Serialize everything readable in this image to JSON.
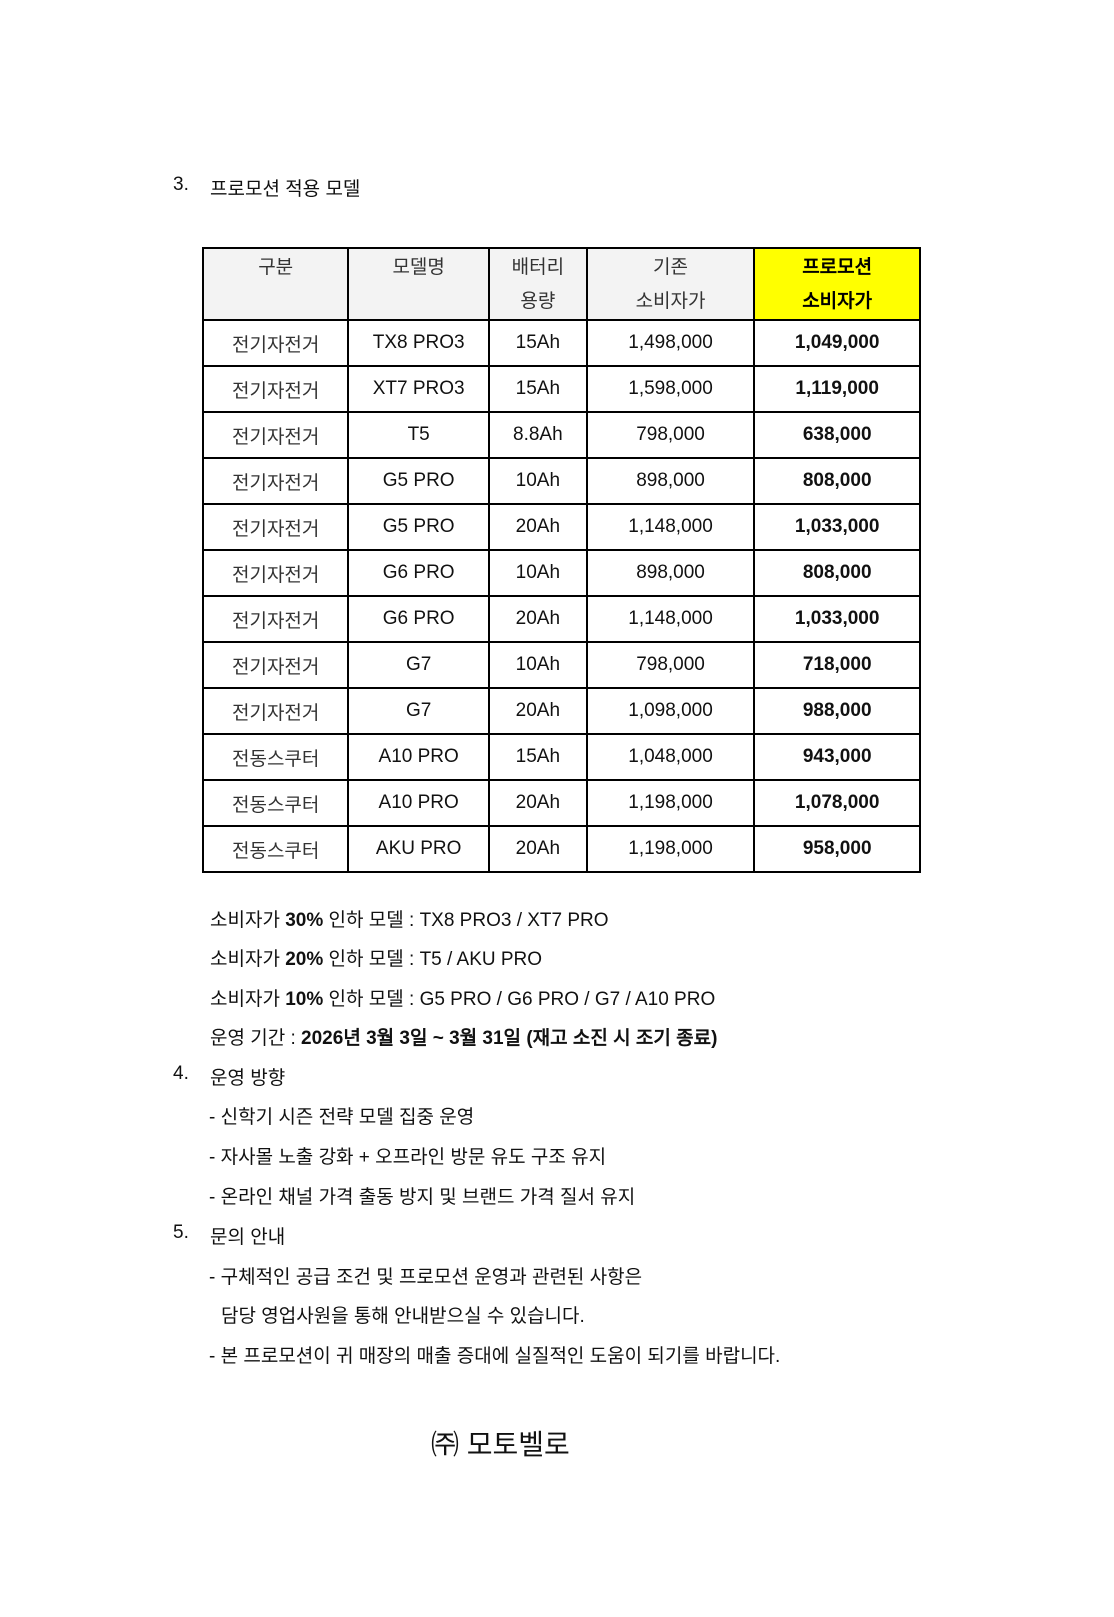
{
  "section3": {
    "number": "3.",
    "title": "프로모션 적용 모델"
  },
  "table": {
    "headers": [
      [
        "구분",
        ""
      ],
      [
        "모델명",
        ""
      ],
      [
        "배터리",
        "용량"
      ],
      [
        "기존",
        "소비자가"
      ],
      [
        "프로모션",
        "소비자가"
      ]
    ],
    "highlight_color": "#ffff00",
    "rows": [
      [
        "전기자전거",
        "TX8 PRO3",
        "15Ah",
        "1,498,000",
        "1,049,000"
      ],
      [
        "전기자전거",
        "XT7 PRO3",
        "15Ah",
        "1,598,000",
        "1,119,000"
      ],
      [
        "전기자전거",
        "T5",
        "8.8Ah",
        "798,000",
        "638,000"
      ],
      [
        "전기자전거",
        "G5 PRO",
        "10Ah",
        "898,000",
        "808,000"
      ],
      [
        "전기자전거",
        "G5 PRO",
        "20Ah",
        "1,148,000",
        "1,033,000"
      ],
      [
        "전기자전거",
        "G6 PRO",
        "10Ah",
        "898,000",
        "808,000"
      ],
      [
        "전기자전거",
        "G6 PRO",
        "20Ah",
        "1,148,000",
        "1,033,000"
      ],
      [
        "전기자전거",
        "G7",
        "10Ah",
        "798,000",
        "718,000"
      ],
      [
        "전기자전거",
        "G7",
        "20Ah",
        "1,098,000",
        "988,000"
      ],
      [
        "전동스쿠터",
        "A10 PRO",
        "15Ah",
        "1,048,000",
        "943,000"
      ],
      [
        "전동스쿠터",
        "A10 PRO",
        "20Ah",
        "1,198,000",
        "1,078,000"
      ],
      [
        "전동스쿠터",
        "AKU PRO",
        "20Ah",
        "1,198,000",
        "958,000"
      ]
    ]
  },
  "notes": [
    {
      "pre": "소비자가 ",
      "bold": "30%",
      "mid": " 인하 모델 : ",
      "post": "TX8 PRO3 / XT7 PRO"
    },
    {
      "pre": "소비자가 ",
      "bold": "20%",
      "mid": " 인하 모델 : ",
      "post": "T5 / AKU PRO"
    },
    {
      "pre": "소비자가 ",
      "bold": "10%",
      "mid": " 인하 모델 : ",
      "post": "G5 PRO / G6 PRO / G7 / A10 PRO"
    }
  ],
  "period": {
    "label": "운영 기간 : ",
    "value": "2026년 3월 3일 ~ 3월 31일 (재고 소진 시 조기 종료)"
  },
  "section4": {
    "number": "4.",
    "title": "운영 방향",
    "items": [
      "- 신학기 시즌 전략 모델 집중 운영",
      "- 자사몰 노출 강화 + 오프라인 방문 유도 구조 유지",
      "- 온라인 채널 가격 출동 방지 및 브랜드 가격 질서 유지"
    ]
  },
  "section5": {
    "number": "5.",
    "title": "문의 안내",
    "items": [
      "- 구체적인 공급 조건 및 프로모션 운영과 관련된 사항은",
      "담당 영업사원을 통해 안내받으실 수 있습니다.",
      "- 본 프로모션이 귀 매장의 매출 증대에 실질적인 도움이 되기를 바랍니다."
    ]
  },
  "company": "㈜ 모토벨로"
}
